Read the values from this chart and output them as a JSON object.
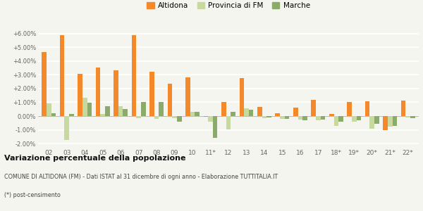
{
  "categories": [
    "02",
    "03",
    "04",
    "05",
    "06",
    "07",
    "08",
    "09",
    "10",
    "11*",
    "12",
    "13",
    "14",
    "15",
    "16",
    "17",
    "18*",
    "19*",
    "20*",
    "21*",
    "22*"
  ],
  "altidona": [
    4.65,
    5.9,
    3.05,
    3.55,
    3.35,
    5.9,
    3.2,
    2.35,
    2.8,
    -0.05,
    1.0,
    2.75,
    0.65,
    0.2,
    0.6,
    1.2,
    0.15,
    1.05,
    1.1,
    -1.0,
    1.15
  ],
  "provincia_fm": [
    0.9,
    -1.75,
    1.35,
    0.15,
    0.7,
    -0.15,
    -0.2,
    -0.15,
    0.3,
    -0.4,
    -0.95,
    0.55,
    -0.15,
    -0.2,
    -0.25,
    -0.3,
    -0.7,
    -0.4,
    -0.9,
    -0.75,
    -0.1
  ],
  "marche": [
    0.2,
    0.15,
    0.95,
    0.7,
    0.5,
    1.05,
    1.05,
    -0.4,
    0.3,
    -1.6,
    0.3,
    0.45,
    -0.1,
    -0.2,
    -0.3,
    -0.25,
    -0.4,
    -0.3,
    -0.55,
    -0.7,
    -0.15
  ],
  "color_altidona": "#f5892a",
  "color_provincia": "#c8d9a0",
  "color_marche": "#8aab6a",
  "background_color": "#f5f5f0",
  "grid_color": "#ffffff",
  "title_bold": "Variazione percentuale della popolazione",
  "footnote1": "COMUNE DI ALTIDONA (FM) - Dati ISTAT al 31 dicembre di ogni anno - Elaborazione TUTTITALIA.IT",
  "footnote2": "(*) post-censimento",
  "ylim_min": -2.3,
  "ylim_max": 6.6,
  "yticks": [
    -2.0,
    -1.0,
    0.0,
    1.0,
    2.0,
    3.0,
    4.0,
    5.0,
    6.0
  ]
}
